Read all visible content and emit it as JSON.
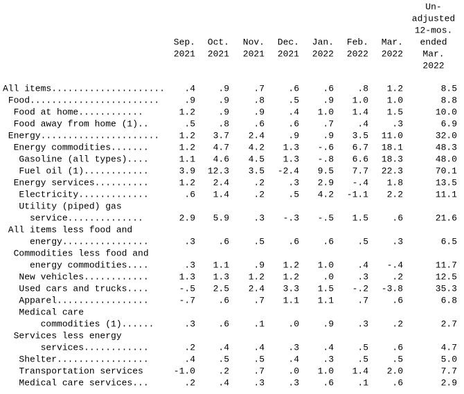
{
  "table": {
    "columns": [
      [
        "Sep.",
        "2021"
      ],
      [
        "Oct.",
        "2021"
      ],
      [
        "Nov.",
        "2021"
      ],
      [
        "Dec.",
        "2021"
      ],
      [
        "Jan.",
        "2022"
      ],
      [
        "Feb.",
        "2022"
      ],
      [
        "Mar.",
        "2022"
      ],
      [
        "Un-",
        "adjusted",
        "12-mos.",
        "ended",
        "Mar.",
        "2022"
      ]
    ],
    "rows": [
      {
        "label": [
          "All items....................."
        ],
        "values": [
          ".4",
          ".9",
          ".7",
          ".6",
          ".6",
          ".8",
          "1.2",
          "8.5"
        ]
      },
      {
        "label": [
          " Food........................"
        ],
        "values": [
          ".9",
          ".9",
          ".8",
          ".5",
          ".9",
          "1.0",
          "1.0",
          "8.8"
        ]
      },
      {
        "label": [
          "  Food at home............"
        ],
        "values": [
          "1.2",
          ".9",
          ".9",
          ".4",
          "1.0",
          "1.4",
          "1.5",
          "10.0"
        ]
      },
      {
        "label": [
          "  Food away from home (1).."
        ],
        "values": [
          ".5",
          ".8",
          ".6",
          ".6",
          ".7",
          ".4",
          ".3",
          "6.9"
        ]
      },
      {
        "label": [
          " Energy......................"
        ],
        "values": [
          "1.2",
          "3.7",
          "2.4",
          ".9",
          ".9",
          "3.5",
          "11.0",
          "32.0"
        ]
      },
      {
        "label": [
          "  Energy commodities......."
        ],
        "values": [
          "1.2",
          "4.7",
          "4.2",
          "1.3",
          "-.6",
          "6.7",
          "18.1",
          "48.3"
        ]
      },
      {
        "label": [
          "   Gasoline (all types)...."
        ],
        "values": [
          "1.1",
          "4.6",
          "4.5",
          "1.3",
          "-.8",
          "6.6",
          "18.3",
          "48.0"
        ]
      },
      {
        "label": [
          "   Fuel oil (1)............"
        ],
        "values": [
          "3.9",
          "12.3",
          "3.5",
          "-2.4",
          "9.5",
          "7.7",
          "22.3",
          "70.1"
        ]
      },
      {
        "label": [
          "  Energy services.........."
        ],
        "values": [
          "1.2",
          "2.4",
          ".2",
          ".3",
          "2.9",
          "-.4",
          "1.8",
          "13.5"
        ]
      },
      {
        "label": [
          "   Electricity............."
        ],
        "values": [
          ".6",
          "1.4",
          ".2",
          ".5",
          "4.2",
          "-1.1",
          "2.2",
          "11.1"
        ]
      },
      {
        "label": [
          "   Utility (piped) gas",
          "     service.............."
        ],
        "values": [
          "2.9",
          "5.9",
          ".3",
          "-.3",
          "-.5",
          "1.5",
          ".6",
          "21.6"
        ]
      },
      {
        "label": [
          " All items less food and",
          "     energy................"
        ],
        "values": [
          ".3",
          ".6",
          ".5",
          ".6",
          ".6",
          ".5",
          ".3",
          "6.5"
        ]
      },
      {
        "label": [
          "  Commodities less food and",
          "     energy commodities...."
        ],
        "values": [
          ".3",
          "1.1",
          ".9",
          "1.2",
          "1.0",
          ".4",
          "-.4",
          "11.7"
        ]
      },
      {
        "label": [
          "   New vehicles............"
        ],
        "values": [
          "1.3",
          "1.3",
          "1.2",
          "1.2",
          ".0",
          ".3",
          ".2",
          "12.5"
        ]
      },
      {
        "label": [
          "   Used cars and trucks...."
        ],
        "values": [
          "-.5",
          "2.5",
          "2.4",
          "3.3",
          "1.5",
          "-.2",
          "-3.8",
          "35.3"
        ]
      },
      {
        "label": [
          "   Apparel................."
        ],
        "values": [
          "-.7",
          ".6",
          ".7",
          "1.1",
          "1.1",
          ".7",
          ".6",
          "6.8"
        ]
      },
      {
        "label": [
          "   Medical care",
          "       commodities (1)......"
        ],
        "values": [
          ".3",
          ".6",
          ".1",
          ".0",
          ".9",
          ".3",
          ".2",
          "2.7"
        ]
      },
      {
        "label": [
          "  Services less energy",
          "       services............"
        ],
        "values": [
          ".2",
          ".4",
          ".4",
          ".3",
          ".4",
          ".5",
          ".6",
          "4.7"
        ]
      },
      {
        "label": [
          "   Shelter................."
        ],
        "values": [
          ".4",
          ".5",
          ".5",
          ".4",
          ".3",
          ".5",
          ".5",
          "5.0"
        ]
      },
      {
        "label": [
          "   Transportation services"
        ],
        "values": [
          "-1.0",
          ".2",
          ".7",
          ".0",
          "1.0",
          "1.4",
          "2.0",
          "7.7"
        ]
      },
      {
        "label": [
          "   Medical care services..."
        ],
        "values": [
          ".2",
          ".4",
          ".3",
          ".3",
          ".6",
          ".1",
          ".6",
          "2.9"
        ]
      }
    ]
  }
}
